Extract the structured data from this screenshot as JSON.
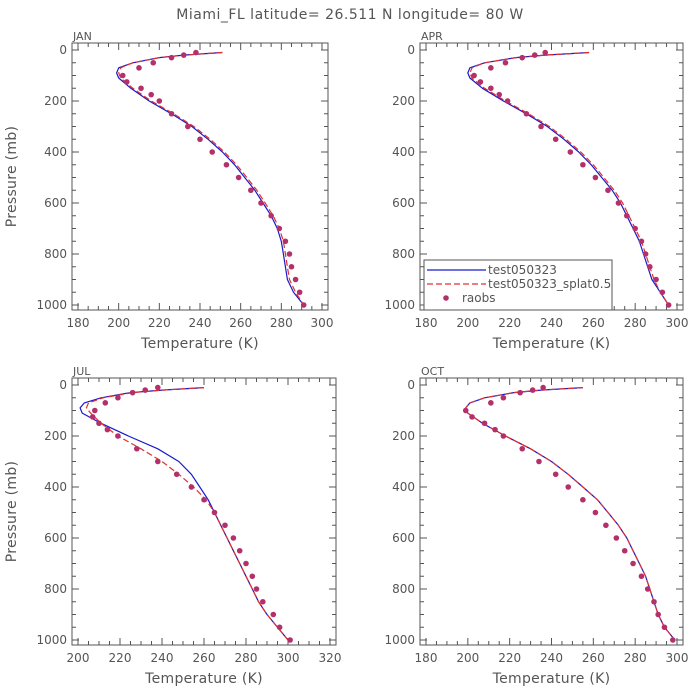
{
  "title": "Miami_FL   latitude= 26.511 N longitude= 80 W",
  "colors": {
    "model": "#1a1acc",
    "splat": "#e03030",
    "raobs": "#b3306a",
    "axis": "#555555"
  },
  "legend": {
    "items": [
      {
        "label": "test050323",
        "style": "solid-line"
      },
      {
        "label": "test050323_splat0.5",
        "style": "dashed-line"
      },
      {
        "label": "raobs",
        "style": "dot"
      }
    ]
  },
  "chart_data": [
    {
      "type": "line",
      "panel_label": "JAN",
      "xlabel": "Temperature (K)",
      "ylabel": "Pressure (mb)",
      "xlim": [
        180,
        300
      ],
      "ylim": [
        1000,
        0
      ],
      "xticks": [
        180,
        200,
        220,
        240,
        260,
        280,
        300
      ],
      "yticks": [
        0,
        200,
        400,
        600,
        800,
        1000
      ],
      "series": [
        {
          "name": "test050323",
          "style": "solid",
          "p": [
            10,
            20,
            30,
            50,
            70,
            90,
            110,
            150,
            200,
            250,
            300,
            350,
            400,
            450,
            500,
            550,
            600,
            650,
            700,
            750,
            800,
            850,
            900,
            950,
            1000
          ],
          "t": [
            251,
            232,
            220,
            207,
            200,
            199,
            200,
            206,
            215,
            226,
            236,
            244,
            251,
            257,
            262,
            267,
            271,
            275,
            278,
            280,
            281,
            282,
            283,
            286,
            291
          ]
        },
        {
          "name": "test050323_splat0.5",
          "style": "dashed",
          "p": [
            10,
            20,
            30,
            50,
            70,
            90,
            110,
            150,
            200,
            250,
            300,
            350,
            400,
            450,
            500,
            550,
            600,
            650,
            700,
            750,
            800,
            850,
            900,
            950,
            1000
          ],
          "t": [
            251,
            232,
            220,
            207,
            201,
            200,
            201,
            207,
            216,
            227,
            237,
            245,
            252,
            258,
            263,
            268,
            272,
            276,
            279,
            281,
            282,
            283,
            284,
            287,
            291
          ]
        },
        {
          "name": "raobs",
          "style": "dots",
          "p": [
            10,
            20,
            30,
            50,
            70,
            100,
            125,
            150,
            175,
            200,
            250,
            300,
            350,
            400,
            450,
            500,
            550,
            600,
            650,
            700,
            750,
            800,
            850,
            900,
            950,
            1000
          ],
          "t": [
            238,
            232,
            226,
            217,
            210,
            202,
            204,
            211,
            216,
            220,
            226,
            234,
            240,
            246,
            253,
            259,
            265,
            270,
            275,
            279,
            282,
            284,
            285,
            287,
            289,
            291
          ]
        }
      ]
    },
    {
      "type": "line",
      "panel_label": "APR",
      "xlabel": "Temperature (K)",
      "ylabel": "",
      "xlim": [
        180,
        300
      ],
      "ylim": [
        1000,
        0
      ],
      "xticks": [
        180,
        200,
        220,
        240,
        260,
        280,
        300
      ],
      "yticks": [
        0,
        200,
        400,
        600,
        800,
        1000
      ],
      "series": [
        {
          "name": "test050323",
          "style": "solid",
          "p": [
            10,
            20,
            30,
            50,
            70,
            90,
            110,
            150,
            200,
            250,
            300,
            350,
            400,
            450,
            500,
            550,
            600,
            650,
            700,
            750,
            800,
            850,
            900,
            950,
            1000
          ],
          "t": [
            258,
            237,
            223,
            208,
            201,
            200,
            201,
            207,
            217,
            228,
            238,
            246,
            253,
            259,
            264,
            269,
            273,
            276,
            279,
            282,
            284,
            286,
            288,
            292,
            296
          ]
        },
        {
          "name": "test050323_splat0.5",
          "style": "dashed",
          "p": [
            10,
            20,
            30,
            50,
            70,
            90,
            110,
            150,
            200,
            250,
            300,
            350,
            400,
            450,
            500,
            550,
            600,
            650,
            700,
            750,
            800,
            850,
            900,
            950,
            1000
          ],
          "t": [
            258,
            237,
            223,
            208,
            202,
            201,
            202,
            208,
            218,
            229,
            239,
            247,
            254,
            260,
            265,
            270,
            274,
            277,
            280,
            283,
            285,
            287,
            289,
            292,
            296
          ]
        },
        {
          "name": "raobs",
          "style": "dots",
          "p": [
            10,
            20,
            30,
            50,
            70,
            100,
            125,
            150,
            175,
            200,
            250,
            300,
            350,
            400,
            450,
            500,
            550,
            600,
            650,
            700,
            750,
            800,
            850,
            900,
            950,
            1000
          ],
          "t": [
            237,
            232,
            226,
            218,
            211,
            203,
            206,
            211,
            215,
            219,
            228,
            235,
            242,
            249,
            255,
            261,
            267,
            272,
            276,
            280,
            283,
            285,
            287,
            290,
            293,
            296
          ]
        }
      ]
    },
    {
      "type": "line",
      "panel_label": "JUL",
      "xlabel": "Temperature (K)",
      "ylabel": "Pressure (mb)",
      "xlim": [
        200,
        320
      ],
      "ylim": [
        1000,
        0
      ],
      "xticks": [
        200,
        220,
        240,
        260,
        280,
        300,
        320
      ],
      "yticks": [
        0,
        200,
        400,
        600,
        800,
        1000
      ],
      "series": [
        {
          "name": "test050323",
          "style": "solid",
          "p": [
            10,
            20,
            30,
            50,
            70,
            90,
            110,
            150,
            200,
            250,
            300,
            350,
            400,
            450,
            500,
            550,
            600,
            650,
            700,
            750,
            800,
            850,
            900,
            950,
            1000
          ],
          "t": [
            260,
            240,
            225,
            211,
            203,
            201,
            202,
            211,
            224,
            238,
            248,
            254,
            258,
            262,
            265,
            268,
            271,
            274,
            277,
            280,
            283,
            286,
            290,
            295,
            300
          ]
        },
        {
          "name": "test050323_splat0.5",
          "style": "dashed",
          "p": [
            10,
            20,
            30,
            50,
            70,
            90,
            110,
            150,
            200,
            250,
            300,
            350,
            400,
            450,
            500,
            550,
            600,
            650,
            700,
            750,
            800,
            850,
            900,
            950,
            1000
          ],
          "t": [
            260,
            240,
            226,
            212,
            205,
            204,
            206,
            211,
            219,
            230,
            240,
            248,
            255,
            261,
            265,
            268,
            271,
            274,
            277,
            280,
            283,
            286,
            290,
            295,
            300
          ]
        },
        {
          "name": "raobs",
          "style": "dots",
          "p": [
            10,
            20,
            30,
            50,
            70,
            100,
            125,
            150,
            175,
            200,
            250,
            300,
            350,
            400,
            450,
            500,
            550,
            600,
            650,
            700,
            750,
            800,
            850,
            900,
            950,
            1000
          ],
          "t": [
            238,
            232,
            226,
            219,
            213,
            208,
            207,
            210,
            214,
            219,
            228,
            238,
            247,
            254,
            260,
            265,
            270,
            274,
            277,
            280,
            283,
            285,
            288,
            293,
            296,
            301
          ]
        }
      ]
    },
    {
      "type": "line",
      "panel_label": "OCT",
      "xlabel": "Temperature (K)",
      "ylabel": "",
      "xlim": [
        180,
        300
      ],
      "ylim": [
        1000,
        0
      ],
      "xticks": [
        180,
        200,
        220,
        240,
        260,
        280,
        300
      ],
      "yticks": [
        0,
        200,
        400,
        600,
        800,
        1000
      ],
      "series": [
        {
          "name": "test050323",
          "style": "solid",
          "p": [
            10,
            20,
            30,
            50,
            70,
            90,
            110,
            150,
            200,
            250,
            300,
            350,
            400,
            450,
            500,
            550,
            600,
            650,
            700,
            750,
            800,
            850,
            900,
            950,
            1000
          ],
          "t": [
            255,
            235,
            222,
            208,
            201,
            199,
            200,
            207,
            218,
            230,
            240,
            248,
            255,
            262,
            267,
            272,
            276,
            279,
            282,
            285,
            287,
            289,
            291,
            294,
            299
          ]
        },
        {
          "name": "test050323_splat0.5",
          "style": "dashed",
          "p": [
            10,
            20,
            30,
            50,
            70,
            90,
            110,
            150,
            200,
            250,
            300,
            350,
            400,
            450,
            500,
            550,
            600,
            650,
            700,
            750,
            800,
            850,
            900,
            950,
            1000
          ],
          "t": [
            255,
            235,
            222,
            208,
            201,
            199,
            200,
            207,
            218,
            230,
            240,
            248,
            255,
            262,
            267,
            272,
            276,
            279,
            282,
            285,
            287,
            289,
            291,
            294,
            299
          ]
        },
        {
          "name": "raobs",
          "style": "dots",
          "p": [
            10,
            20,
            30,
            50,
            70,
            100,
            125,
            150,
            175,
            200,
            250,
            300,
            350,
            400,
            450,
            500,
            550,
            600,
            650,
            700,
            750,
            800,
            850,
            900,
            950,
            1000
          ],
          "t": [
            236,
            231,
            225,
            217,
            211,
            199,
            202,
            208,
            213,
            217,
            226,
            234,
            242,
            248,
            255,
            261,
            266,
            271,
            275,
            279,
            283,
            286,
            289,
            291,
            294,
            298
          ]
        }
      ]
    }
  ]
}
